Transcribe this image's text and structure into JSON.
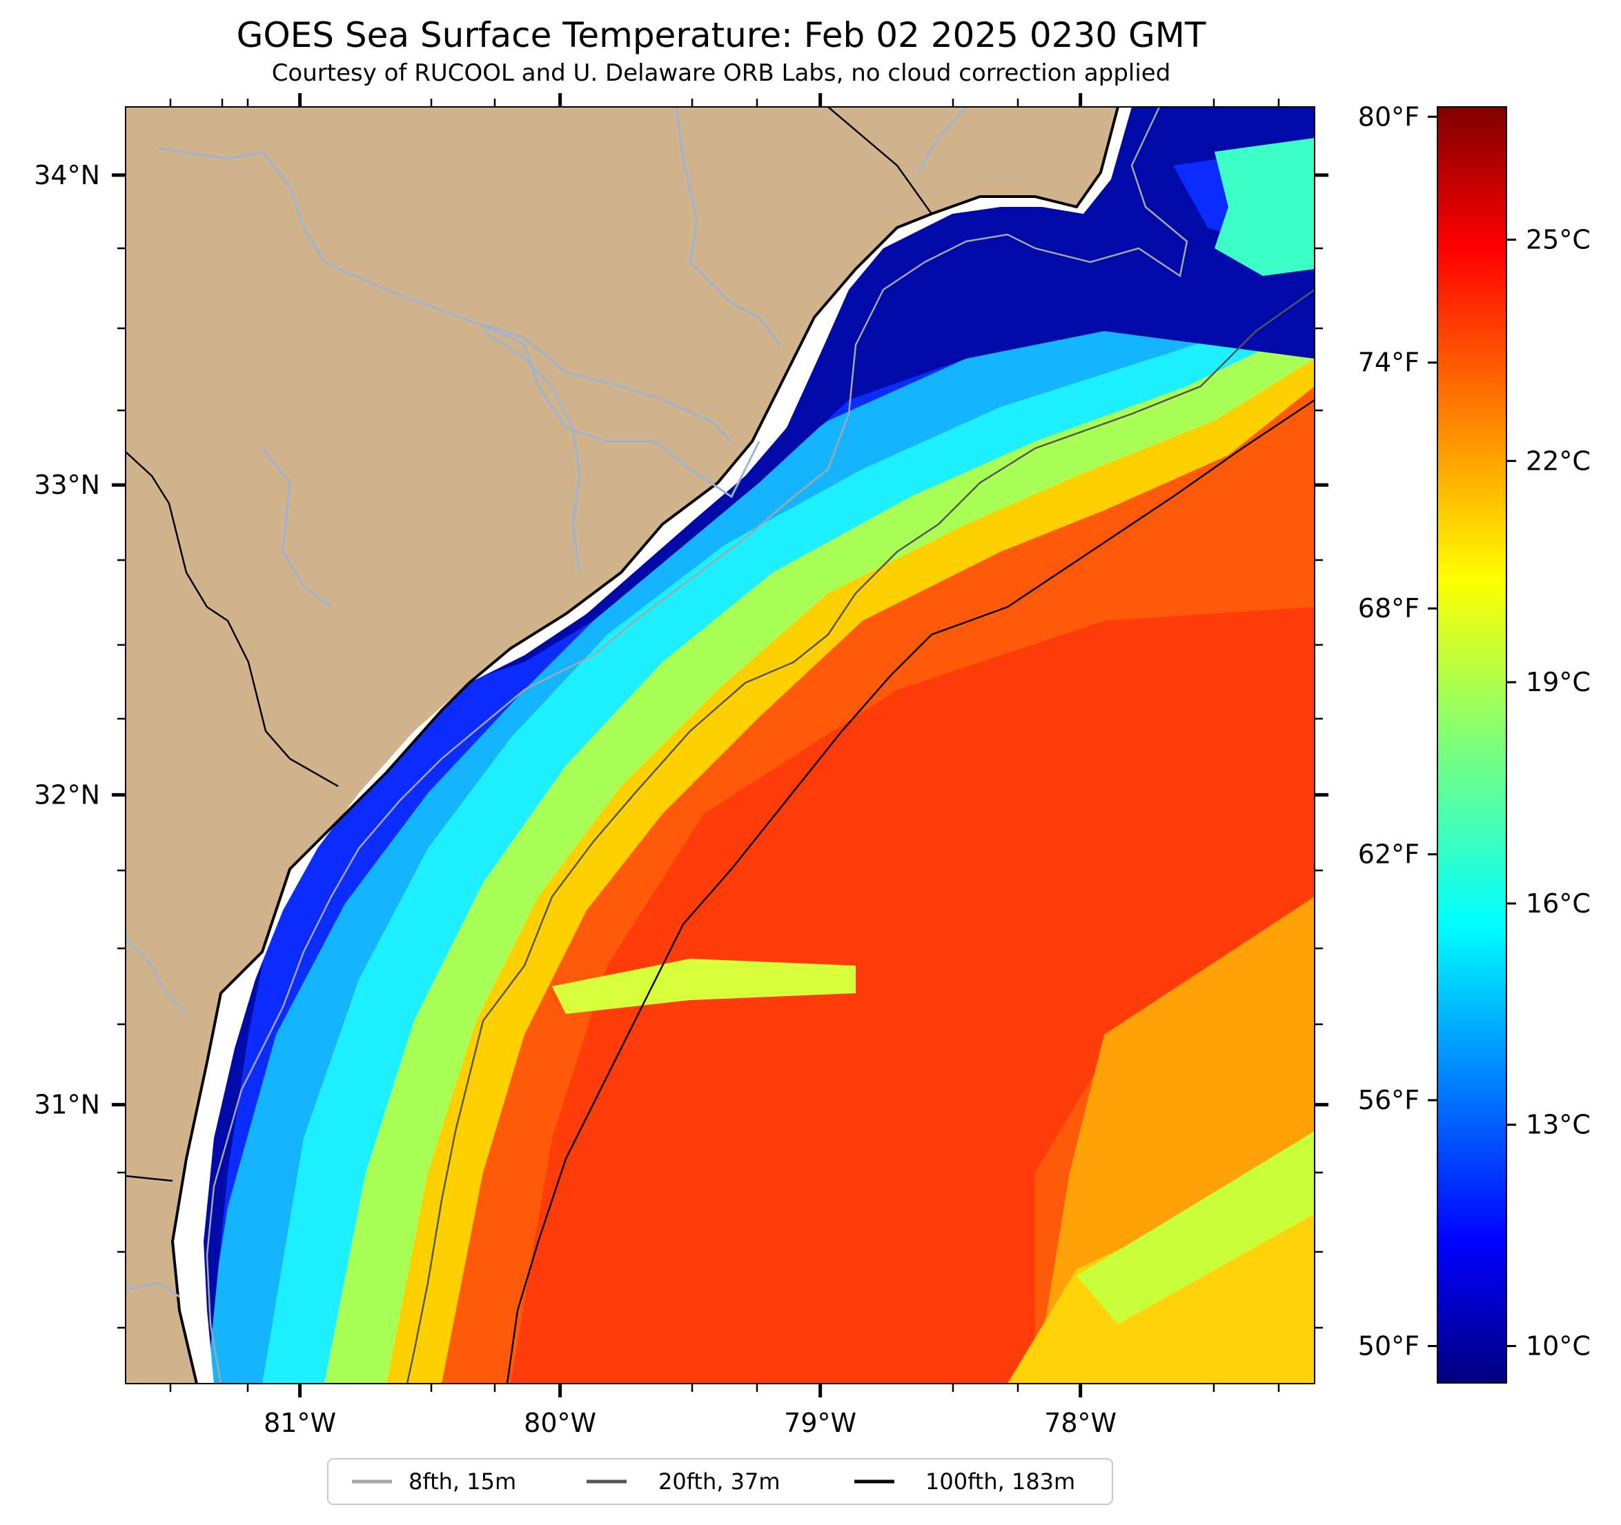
{
  "header": {
    "title": "GOES Sea Surface Temperature: Feb 02 2025 0230 GMT",
    "subtitle": "Courtesy of RUCOOL and U. Delaware ORB Labs, no cloud correction applied"
  },
  "map": {
    "extent": {
      "lon_min": -81.67,
      "lon_max": -77.1,
      "lat_min": 30.1,
      "lat_max": 34.22
    },
    "latitude_ticks": [
      {
        "value": 34,
        "label": "34°N"
      },
      {
        "value": 33,
        "label": "33°N"
      },
      {
        "value": 32,
        "label": "32°N"
      },
      {
        "value": 31,
        "label": "31°N"
      }
    ],
    "longitude_ticks": [
      {
        "value": -81,
        "label": "81°W"
      },
      {
        "value": -80,
        "label": "80°W"
      },
      {
        "value": -79,
        "label": "79°W"
      },
      {
        "value": -78,
        "label": "78°W"
      }
    ],
    "land_color": "#d2b48c",
    "river_color": "#9cb3d4",
    "isobaths": [
      {
        "label": "8fth, 15m",
        "color": "#a6a6a6"
      },
      {
        "label": "20fth, 37m",
        "color": "#555555"
      },
      {
        "label": "100fth, 183m",
        "color": "#000000"
      }
    ]
  },
  "colorbar": {
    "colormap": "jet",
    "range_celsius": [
      9.5,
      26.8
    ],
    "fahrenheit_ticks": [
      {
        "value": 80,
        "label": "80°F"
      },
      {
        "value": 74,
        "label": "74°F"
      },
      {
        "value": 68,
        "label": "68°F"
      },
      {
        "value": 62,
        "label": "62°F"
      },
      {
        "value": 56,
        "label": "56°F"
      },
      {
        "value": 50,
        "label": "50°F"
      }
    ],
    "celsius_ticks": [
      {
        "value": 25,
        "label": "25°C"
      },
      {
        "value": 22,
        "label": "22°C"
      },
      {
        "value": 19,
        "label": "19°C"
      },
      {
        "value": 16,
        "label": "16°C"
      },
      {
        "value": 13,
        "label": "13°C"
      },
      {
        "value": 10,
        "label": "10°C"
      }
    ]
  }
}
